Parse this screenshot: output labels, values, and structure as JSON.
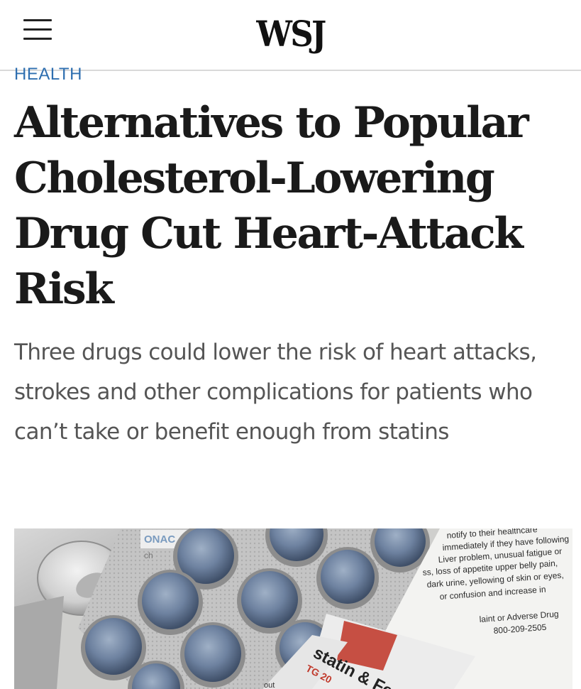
{
  "header": {
    "logo": "WSJ",
    "menu_icon": "hamburger-menu-icon"
  },
  "article": {
    "section": "HEALTH",
    "headline": "Alternatives to Popular Cholesterol-Lowering Drug Cut Heart-Attack Risk",
    "dek": "Three drugs could lower the risk of heart attacks, strokes and other complications for patients who can’t take or benefit enough from statins"
  },
  "hero_image": {
    "box_brand": "ONAC",
    "box_fragment": "ch",
    "leaflet_lines": [
      "notify to their healthcare",
      "immediately if they have following",
      "Liver problem, unusual fatigue or",
      "ss, loss of appetite upper belly pain,",
      "dark urine, yellowing of skin or eyes,",
      "or confusion and increase in",
      "laint or Adverse Drug",
      "800-209-2505"
    ],
    "carton_text": "statin & Fe",
    "carton_code": "TG 20",
    "carton_fragment": "out"
  }
}
